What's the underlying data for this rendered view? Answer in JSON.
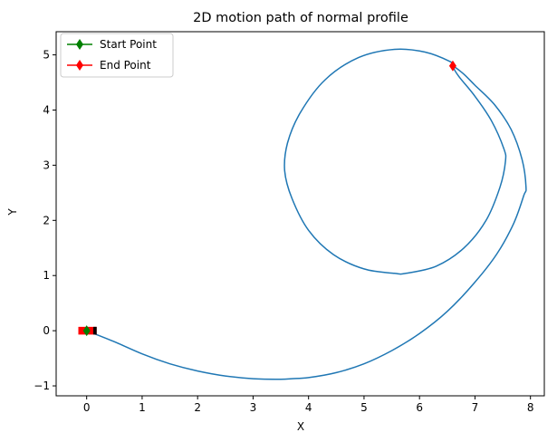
{
  "chart_data": {
    "type": "line",
    "title": "2D motion path of normal profile",
    "xlabel": "X",
    "ylabel": "Y",
    "xlim": [
      -0.55,
      8.25
    ],
    "ylim": [
      -1.18,
      5.42
    ],
    "xticks": [
      0,
      1,
      2,
      3,
      4,
      5,
      6,
      7,
      8
    ],
    "yticks": [
      -1,
      0,
      1,
      2,
      3,
      4,
      5
    ],
    "grid": false,
    "legend_position": "top-left",
    "colors": {
      "path": "#1f77b4",
      "start": "#008000",
      "end": "#ff0000",
      "vehicle_body": "#ff0000",
      "vehicle_wheel": "#000000"
    },
    "series": [
      {
        "name": "",
        "role": "path",
        "x": [
          0.0,
          0.5,
          1.0,
          1.5,
          2.0,
          2.5,
          3.0,
          3.5,
          3.7,
          4.0,
          4.5,
          5.0,
          5.5,
          6.0,
          6.5,
          7.0,
          7.4,
          7.7,
          7.88,
          7.92,
          7.85,
          7.65,
          7.35,
          7.0,
          6.8,
          6.65,
          6.6,
          6.7,
          7.0,
          7.3,
          7.52,
          7.55,
          7.45,
          7.2,
          6.8,
          6.3,
          5.75,
          5.55,
          5.0,
          4.45,
          4.0,
          3.7,
          3.57,
          3.62,
          3.85,
          4.3,
          4.9,
          5.55,
          6.1,
          6.55,
          6.6
        ],
        "y": [
          0.0,
          -0.2,
          -0.42,
          -0.6,
          -0.73,
          -0.82,
          -0.87,
          -0.88,
          -0.87,
          -0.85,
          -0.76,
          -0.6,
          -0.36,
          -0.05,
          0.35,
          0.88,
          1.4,
          1.95,
          2.45,
          2.6,
          3.1,
          3.65,
          4.1,
          4.45,
          4.65,
          4.77,
          4.8,
          4.62,
          4.25,
          3.8,
          3.3,
          3.07,
          2.6,
          2.0,
          1.5,
          1.17,
          1.04,
          1.04,
          1.12,
          1.38,
          1.82,
          2.4,
          2.9,
          3.4,
          3.95,
          4.55,
          4.95,
          5.1,
          5.05,
          4.88,
          4.8
        ]
      }
    ],
    "markers": [
      {
        "name": "Start Point",
        "x": 0.0,
        "y": 0.0,
        "color": "#008000",
        "shape": "diamond"
      },
      {
        "name": "End Point",
        "x": 6.6,
        "y": 4.8,
        "color": "#ff0000",
        "shape": "diamond"
      }
    ],
    "legend": [
      {
        "label": "Start Point",
        "color": "#008000"
      },
      {
        "label": "End Point",
        "color": "#ff0000"
      }
    ]
  }
}
